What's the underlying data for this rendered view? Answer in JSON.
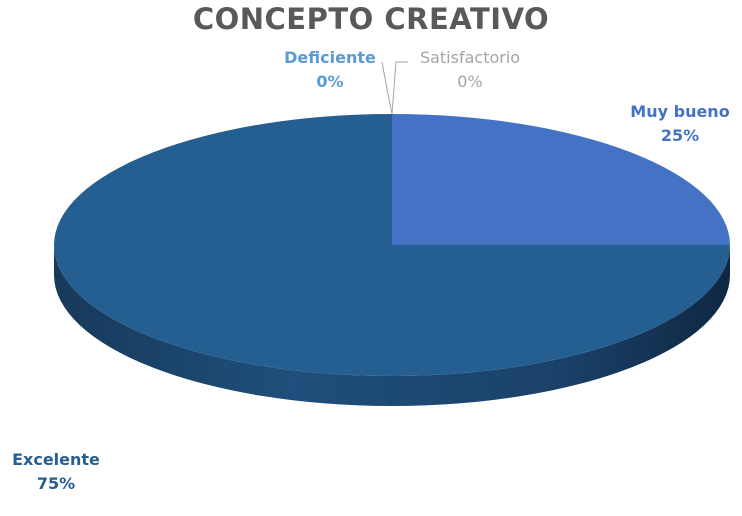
{
  "chart_data": {
    "type": "pie",
    "title": "CONCEPTO CREATIVO",
    "categories": [
      "Muy bueno",
      "Excelente",
      "Deficiente",
      "Satisfactorio"
    ],
    "values": [
      25,
      75,
      0,
      0
    ],
    "value_labels": [
      "25%",
      "75%",
      "0%",
      "0%"
    ],
    "colors": [
      "#4472C4",
      "#255E91",
      "#5B9BD5",
      "#A5A5A5"
    ],
    "style": "3d",
    "legend": "none",
    "data_labels": "outside-with-category"
  }
}
